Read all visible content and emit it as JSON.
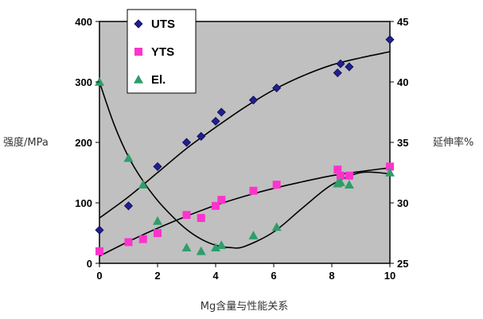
{
  "chart_data": {
    "type": "scatter",
    "title": "",
    "xlabel": "Mg含量与性能关系",
    "ylabel_left": "强度/MPa",
    "ylabel_right": "延伸率%",
    "xlim": [
      0,
      10
    ],
    "ylim_left": [
      0,
      400
    ],
    "ylim_right": [
      25,
      45
    ],
    "x_ticks": [
      "0",
      "2",
      "4",
      "6",
      "8",
      "10"
    ],
    "y_ticks_left": [
      "0",
      "100",
      "200",
      "300",
      "400"
    ],
    "y_ticks_right": [
      "25",
      "30",
      "35",
      "40",
      "45"
    ],
    "grid": false,
    "legend_position": "top-left",
    "series": [
      {
        "name": "UTS",
        "axis": "left",
        "marker": "diamond",
        "color": "#1f1f8f",
        "x": [
          0,
          1,
          2,
          3,
          3.5,
          4,
          4.2,
          5.3,
          6.1,
          8.2,
          8.3,
          8.6,
          10
        ],
        "y": [
          55,
          95,
          160,
          200,
          210,
          235,
          250,
          270,
          290,
          315,
          330,
          325,
          370
        ],
        "trend_x": [
          0,
          1,
          2,
          3,
          4,
          5,
          6,
          7,
          8,
          9,
          10
        ],
        "trend_y": [
          75,
          110,
          150,
          190,
          225,
          258,
          287,
          310,
          328,
          340,
          350
        ]
      },
      {
        "name": "YTS",
        "axis": "left",
        "marker": "square",
        "color": "#ff33cc",
        "x": [
          0,
          1,
          1.5,
          2,
          3,
          3.5,
          4,
          4.2,
          5.3,
          6.1,
          8.2,
          8.3,
          8.6,
          10
        ],
        "y": [
          20,
          35,
          40,
          50,
          80,
          75,
          95,
          105,
          120,
          130,
          155,
          145,
          145,
          160
        ],
        "trend_x": [
          0,
          1,
          2,
          3,
          4,
          5,
          6,
          7,
          8,
          9,
          10
        ],
        "trend_y": [
          12,
          36,
          58,
          78,
          96,
          111,
          124,
          135,
          145,
          152,
          158
        ]
      },
      {
        "name": "El.",
        "axis": "right",
        "marker": "triangle",
        "color": "#2e9e6a",
        "x": [
          0,
          1,
          1.5,
          2,
          3,
          3.5,
          4,
          4.2,
          5.3,
          6.1,
          8.2,
          8.3,
          8.6,
          10
        ],
        "y": [
          40,
          33.7,
          31.5,
          28.5,
          26.3,
          26,
          26.3,
          26.5,
          27.3,
          28,
          31.6,
          31.7,
          31.5,
          32.5
        ],
        "trend_x": [
          0,
          0.5,
          1,
          1.5,
          2,
          2.5,
          3,
          3.5,
          4,
          4.5,
          5,
          6,
          7,
          8,
          9,
          10
        ],
        "trend_y": [
          40,
          36.5,
          33.8,
          31.8,
          30.2,
          28.9,
          27.8,
          27,
          26.5,
          26.3,
          26.4,
          27.6,
          29.6,
          31.5,
          32.5,
          32.4
        ]
      }
    ]
  }
}
